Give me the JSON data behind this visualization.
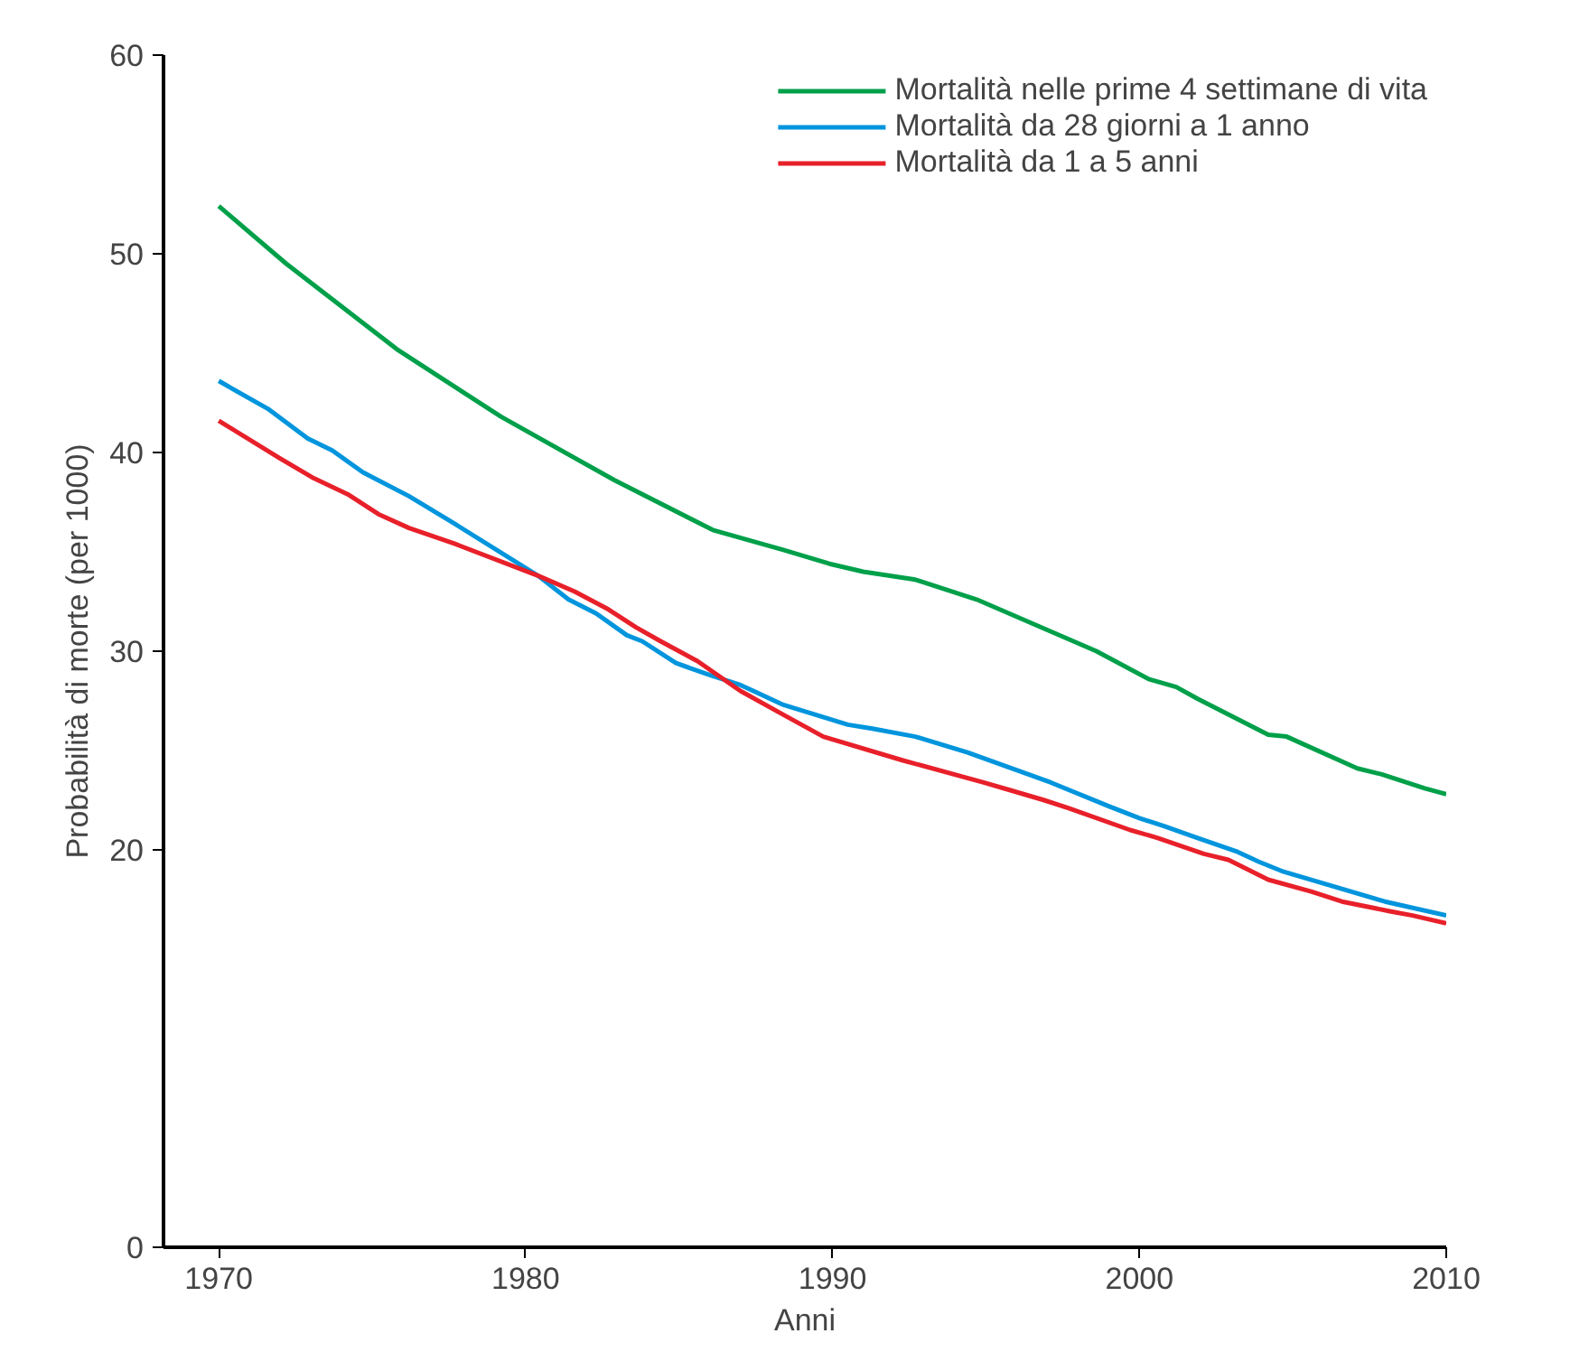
{
  "chart_data": {
    "type": "line",
    "xlabel": "Anni",
    "ylabel": "Probabilità di morte (per 1000)",
    "xlim": [
      1968.2,
      2010
    ],
    "xticks": [
      1970,
      1980,
      1990,
      2000,
      2010
    ],
    "ylim": [
      0,
      60
    ],
    "yticks": [
      0,
      20,
      30,
      40,
      50,
      60
    ],
    "grid": false,
    "legend": "top right",
    "line_style": "solid",
    "series": [
      {
        "name": "Mortalità nelle prime 4 settimane di vita",
        "color": "#00a04a",
        "x": [
          1970,
          1972.2,
          1975.8,
          1979.2,
          1982.9,
          1986.1,
          1988.4,
          1989.9,
          1991,
          1992.7,
          1994.7,
          1998.6,
          2000.3,
          2001.2,
          2001.9,
          2004.2,
          2004.8,
          2007.1,
          2007.9,
          2009.3,
          2010
        ],
        "values": [
          52.4,
          49.5,
          45.2,
          41.8,
          38.6,
          36.1,
          35.1,
          34.4,
          34.0,
          33.6,
          32.6,
          30.0,
          28.6,
          28.2,
          27.6,
          25.8,
          25.7,
          24.1,
          23.8,
          23.1,
          22.8
        ]
      },
      {
        "name": "Mortalità da 28 giorni a 1 anno",
        "color": "#0095dd",
        "x": [
          1970,
          1971.6,
          1972.9,
          1973.7,
          1974.7,
          1976.2,
          1977.7,
          1980.4,
          1981.4,
          1982.3,
          1983.3,
          1983.8,
          1984.9,
          1986,
          1987,
          1988.4,
          1990.5,
          1991.3,
          1992.7,
          1994.4,
          1997.1,
          1999,
          2000,
          2000.8,
          2001.9,
          2003.2,
          2003.9,
          2004.7,
          2008,
          2010
        ],
        "values": [
          43.6,
          42.2,
          40.7,
          40.1,
          39.0,
          37.8,
          36.4,
          33.8,
          32.6,
          31.9,
          30.8,
          30.5,
          29.4,
          28.8,
          28.3,
          27.3,
          26.3,
          26.1,
          25.7,
          24.9,
          23.4,
          22.2,
          21.6,
          21.2,
          20.6,
          19.9,
          19.4,
          18.9,
          17.4,
          16.7
        ]
      },
      {
        "name": "Mortalità da 1 a 5 anni",
        "color": "#e8202a",
        "x": [
          1970,
          1972,
          1973.1,
          1974.2,
          1975.2,
          1976.2,
          1977.7,
          1980.4,
          1981.6,
          1982.7,
          1983.6,
          1984.4,
          1985.6,
          1987,
          1988.4,
          1989.7,
          1992.3,
          1994.9,
          1995.8,
          1996.9,
          1997.7,
          1999.7,
          2000.6,
          2002.1,
          2002.9,
          2004.2,
          2005.6,
          2006.6,
          2008.2,
          2008.9,
          2010
        ],
        "values": [
          41.6,
          39.7,
          38.7,
          37.9,
          36.9,
          36.2,
          35.4,
          33.8,
          33.0,
          32.1,
          31.2,
          30.5,
          29.5,
          28.0,
          26.8,
          25.7,
          24.5,
          23.4,
          23.0,
          22.5,
          22.1,
          21.0,
          20.6,
          19.8,
          19.5,
          18.5,
          17.9,
          17.4,
          16.9,
          16.7,
          16.3
        ]
      }
    ]
  }
}
